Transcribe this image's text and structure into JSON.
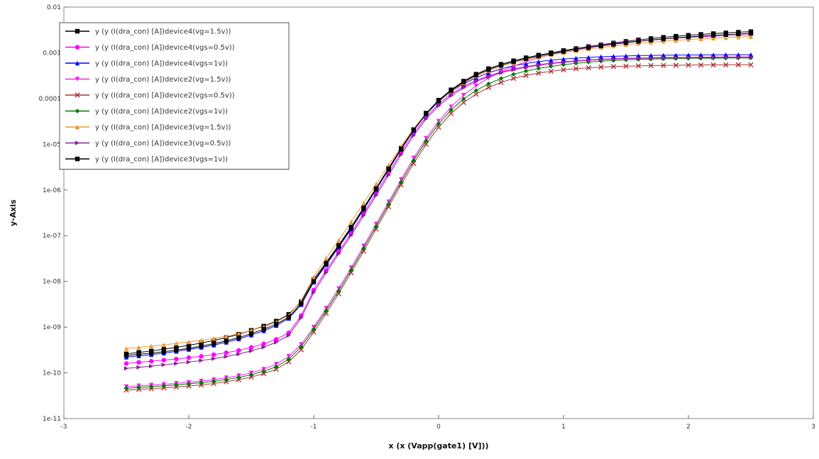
{
  "chart_data": {
    "type": "line",
    "title": "",
    "xlabel": "x (x (Vapp(gate1) [V]))",
    "ylabel": "y-Axis",
    "xlim": [
      -3,
      3
    ],
    "ylim": [
      1e-11,
      0.01
    ],
    "y_scale": "log",
    "x_ticks": [
      -3,
      -2,
      -1,
      0,
      1,
      2,
      3
    ],
    "x_tick_labels": [
      "-3",
      "-2",
      "-1",
      "0",
      "1",
      "2",
      "3"
    ],
    "y_ticks": [
      0.01,
      0.001,
      0.0001,
      1e-05,
      1e-06,
      1e-07,
      1e-08,
      1e-09,
      1e-10,
      1e-11
    ],
    "y_tick_labels": [
      "0.01",
      "0.001",
      "0.0001",
      "1e-05",
      "1e-06",
      "1e-07",
      "1e-08",
      "1e-09",
      "1e-10",
      "1e-11"
    ],
    "grid": false,
    "legend_position": "top-left",
    "x": [
      -2.5,
      -2.4,
      -2.3,
      -2.2,
      -2.1,
      -2.0,
      -1.9,
      -1.8,
      -1.7,
      -1.6,
      -1.5,
      -1.4,
      -1.3,
      -1.2,
      -1.1,
      -1.0,
      -0.9,
      -0.8,
      -0.7,
      -0.6,
      -0.5,
      -0.4,
      -0.3,
      -0.2,
      -0.1,
      0.0,
      0.1,
      0.2,
      0.3,
      0.4,
      0.5,
      0.6,
      0.7,
      0.8,
      0.9,
      1.0,
      1.1,
      1.2,
      1.3,
      1.4,
      1.5,
      1.6,
      1.7,
      1.8,
      1.9,
      2.0,
      2.1,
      2.2,
      2.3,
      2.4,
      2.5
    ],
    "series": [
      {
        "name": "y (y (I(dra_con) [A])device4(vg=1.5v))",
        "color": "#000000",
        "marker": "square",
        "values": [
          2.6e-10,
          2.8e-10,
          3e-10,
          3.3e-10,
          3.6e-10,
          4e-10,
          4.5e-10,
          5.1e-10,
          5.9e-10,
          7e-10,
          8.5e-10,
          1.05e-09,
          1.35e-09,
          1.9e-09,
          3.6e-09,
          1.1e-08,
          2.6e-08,
          6.2e-08,
          1.55e-07,
          4.1e-07,
          1.1e-06,
          3e-06,
          8.2e-06,
          2.1e-05,
          4.8e-05,
          9.2e-05,
          0.000155,
          0.00024,
          0.00034,
          0.00045,
          0.00056,
          0.00067,
          0.00078,
          0.00089,
          0.001,
          0.00112,
          0.00124,
          0.00137,
          0.0015,
          0.00164,
          0.00178,
          0.00192,
          0.00205,
          0.00218,
          0.0023,
          0.00242,
          0.00253,
          0.00263,
          0.00273,
          0.00282,
          0.0029
        ]
      },
      {
        "name": "y (y (I(dra_con) [A])device4(vgs=0.5v))",
        "color": "#ff00ff",
        "marker": "circle",
        "values": [
          1.6e-10,
          1.7e-10,
          1.8e-10,
          1.9e-10,
          2e-10,
          2.15e-10,
          2.3e-10,
          2.5e-10,
          2.75e-10,
          3.1e-10,
          3.6e-10,
          4.3e-10,
          5.4e-10,
          7.5e-10,
          1.8e-09,
          6.5e-09,
          1.75e-08,
          4.5e-08,
          1.15e-07,
          3.1e-07,
          8.6e-07,
          2.4e-06,
          6.7e-06,
          1.75e-05,
          4e-05,
          7.6e-05,
          0.000125,
          0.000185,
          0.00025,
          0.000315,
          0.00038,
          0.000445,
          0.0005,
          0.00055,
          0.000595,
          0.000635,
          0.00067,
          0.0007,
          0.000725,
          0.000745,
          0.00076,
          0.000772,
          0.000782,
          0.00079,
          0.000796,
          0.0008,
          0.000804,
          0.000807,
          0.00081,
          0.000812,
          0.000814
        ]
      },
      {
        "name": "y (y (I(dra_con) [A])device4(vgs=1v))",
        "color": "#0000ff",
        "marker": "triangle-up",
        "values": [
          2.2e-10,
          2.35e-10,
          2.5e-10,
          2.7e-10,
          2.95e-10,
          3.25e-10,
          3.6e-10,
          4.05e-10,
          4.65e-10,
          5.5e-10,
          6.7e-10,
          8.3e-10,
          1.08e-09,
          1.55e-09,
          3.1e-09,
          9.6e-09,
          2.3e-08,
          5.6e-08,
          1.4e-07,
          3.75e-07,
          1.02e-06,
          2.8e-06,
          7.7e-06,
          2e-05,
          4.55e-05,
          8.6e-05,
          0.000143,
          0.00021,
          0.000285,
          0.000365,
          0.000445,
          0.00052,
          0.000585,
          0.00064,
          0.00069,
          0.00073,
          0.000765,
          0.000795,
          0.00082,
          0.00084,
          0.000855,
          0.000868,
          0.000878,
          0.000886,
          0.000892,
          0.000897,
          0.000901,
          0.000904,
          0.000907,
          0.000909,
          0.00091
        ]
      },
      {
        "name": "y (y (I(dra_con) [A])device2(vg=1.5v))",
        "color": "#ee22ee",
        "marker": "triangle-down",
        "values": [
          5e-11,
          5.2e-11,
          5.4e-11,
          5.6e-11,
          5.9e-11,
          6.2e-11,
          6.6e-11,
          7.1e-11,
          7.8e-11,
          8.7e-11,
          1e-10,
          1.2e-10,
          1.55e-10,
          2.3e-10,
          4.2e-10,
          1e-09,
          2.6e-09,
          7e-09,
          2e-08,
          6e-08,
          1.8e-07,
          5.5e-07,
          1.7e-06,
          5e-06,
          1.35e-05,
          3.2e-05,
          6.6e-05,
          0.000118,
          0.00019,
          0.00028,
          0.00039,
          0.00051,
          0.00064,
          0.00078,
          0.00092,
          0.00106,
          0.0012,
          0.00133,
          0.00146,
          0.00158,
          0.0017,
          0.00181,
          0.00191,
          0.002,
          0.00209,
          0.00217,
          0.00224,
          0.00231,
          0.00237,
          0.00243,
          0.00248
        ]
      },
      {
        "name": "y (y (I(dra_con) [A])device2(vgs=0.5v))",
        "color": "#aa3333",
        "marker": "x",
        "values": [
          4.2e-11,
          4.35e-11,
          4.5e-11,
          4.7e-11,
          4.9e-11,
          5.15e-11,
          5.45e-11,
          5.85e-11,
          6.4e-11,
          7.1e-11,
          8.1e-11,
          9.6e-11,
          1.2e-10,
          1.75e-10,
          3.2e-10,
          7.8e-10,
          2e-09,
          5.4e-09,
          1.55e-08,
          4.6e-08,
          1.4e-07,
          4.3e-07,
          1.3e-06,
          3.8e-06,
          1e-05,
          2.35e-05,
          4.7e-05,
          8.2e-05,
          0.000125,
          0.000175,
          0.000225,
          0.000275,
          0.00032,
          0.00036,
          0.000395,
          0.000425,
          0.00045,
          0.00047,
          0.000487,
          0.0005,
          0.00051,
          0.000518,
          0.000525,
          0.00053,
          0.000534,
          0.000538,
          0.000541,
          0.000543,
          0.000545,
          0.000547,
          0.000548
        ]
      },
      {
        "name": "y (y (I(dra_con) [A])device2(vgs=1v))",
        "color": "#007700",
        "marker": "diamond",
        "values": [
          4.6e-11,
          4.8e-11,
          5e-11,
          5.2e-11,
          5.45e-11,
          5.75e-11,
          6.1e-11,
          6.55e-11,
          7.15e-11,
          7.95e-11,
          9.1e-11,
          1.08e-10,
          1.36e-10,
          2e-10,
          3.7e-10,
          9e-10,
          2.3e-09,
          6.2e-09,
          1.77e-08,
          5.3e-08,
          1.6e-07,
          4.9e-07,
          1.5e-06,
          4.4e-06,
          1.18e-05,
          2.8e-05,
          5.6e-05,
          9.8e-05,
          0.00015,
          0.00021,
          0.000275,
          0.00034,
          0.0004,
          0.000455,
          0.000505,
          0.00055,
          0.00059,
          0.000625,
          0.000655,
          0.00068,
          0.0007,
          0.000717,
          0.00073,
          0.00074,
          0.000748,
          0.000755,
          0.00076,
          0.000764,
          0.000767,
          0.00077,
          0.000772
        ]
      },
      {
        "name": "y (y (I(dra_con) [A])device3(vg=1.5v))",
        "color": "#ee9933",
        "marker": "triangle-up",
        "values": [
          3.4e-10,
          3.6e-10,
          3.85e-10,
          4.1e-10,
          4.4e-10,
          4.75e-10,
          5.15e-10,
          5.65e-10,
          6.3e-10,
          7.2e-10,
          8.5e-10,
          1.02e-09,
          1.3e-09,
          1.8e-09,
          3.8e-09,
          1.25e-08,
          3.2e-08,
          8e-08,
          2e-07,
          5.2e-07,
          1.35e-06,
          3.5e-06,
          9e-06,
          2.2e-05,
          4.8e-05,
          8.8e-05,
          0.000145,
          0.00022,
          0.00031,
          0.00041,
          0.00051,
          0.00061,
          0.00071,
          0.00081,
          0.00091,
          0.00101,
          0.00111,
          0.00121,
          0.00131,
          0.00141,
          0.00151,
          0.00161,
          0.0017,
          0.00179,
          0.00187,
          0.00195,
          0.00202,
          0.00209,
          0.00215,
          0.00221,
          0.00226
        ]
      },
      {
        "name": "y (y (I(dra_con) [A])device3(vg=0.5v))",
        "color": "#882299",
        "marker": "triangle-right",
        "values": [
          1.25e-10,
          1.32e-10,
          1.4e-10,
          1.5e-10,
          1.6e-10,
          1.72e-10,
          1.86e-10,
          2.04e-10,
          2.27e-10,
          2.58e-10,
          3.02e-10,
          3.65e-10,
          4.65e-10,
          6.6e-10,
          1.6e-09,
          5.7e-09,
          1.55e-08,
          4e-08,
          1.02e-07,
          2.75e-07,
          7.6e-07,
          2.1e-06,
          5.9e-06,
          1.55e-05,
          3.6e-05,
          6.9e-05,
          0.000115,
          0.000172,
          0.000235,
          0.0003,
          0.000365,
          0.000428,
          0.000485,
          0.000535,
          0.00058,
          0.00062,
          0.000655,
          0.000685,
          0.00071,
          0.00073,
          0.000745,
          0.000757,
          0.000767,
          0.000775,
          0.000781,
          0.000786,
          0.00079,
          0.000793,
          0.000796,
          0.000798,
          0.0008
        ]
      },
      {
        "name": "y (y (I(dra_con) [A])device3(vgs=1v))",
        "color": "#000000",
        "marker": "square",
        "values": [
          2.4e-10,
          2.55e-10,
          2.7e-10,
          2.9e-10,
          3.15e-10,
          3.45e-10,
          3.85e-10,
          4.35e-10,
          5e-10,
          5.9e-10,
          7.2e-10,
          9e-10,
          1.16e-09,
          1.65e-09,
          3.3e-09,
          1e-08,
          2.45e-08,
          5.9e-08,
          1.48e-07,
          3.95e-07,
          1.06e-06,
          2.9e-06,
          7.9e-06,
          2.05e-05,
          4.7e-05,
          8.9e-05,
          0.00015,
          0.00023,
          0.000325,
          0.00043,
          0.000535,
          0.00064,
          0.000745,
          0.00085,
          0.000955,
          0.00107,
          0.00118,
          0.0013,
          0.00142,
          0.00154,
          0.00166,
          0.00178,
          0.0019,
          0.00201,
          0.00212,
          0.00222,
          0.00232,
          0.00241,
          0.0025,
          0.00258,
          0.00266
        ]
      }
    ]
  }
}
